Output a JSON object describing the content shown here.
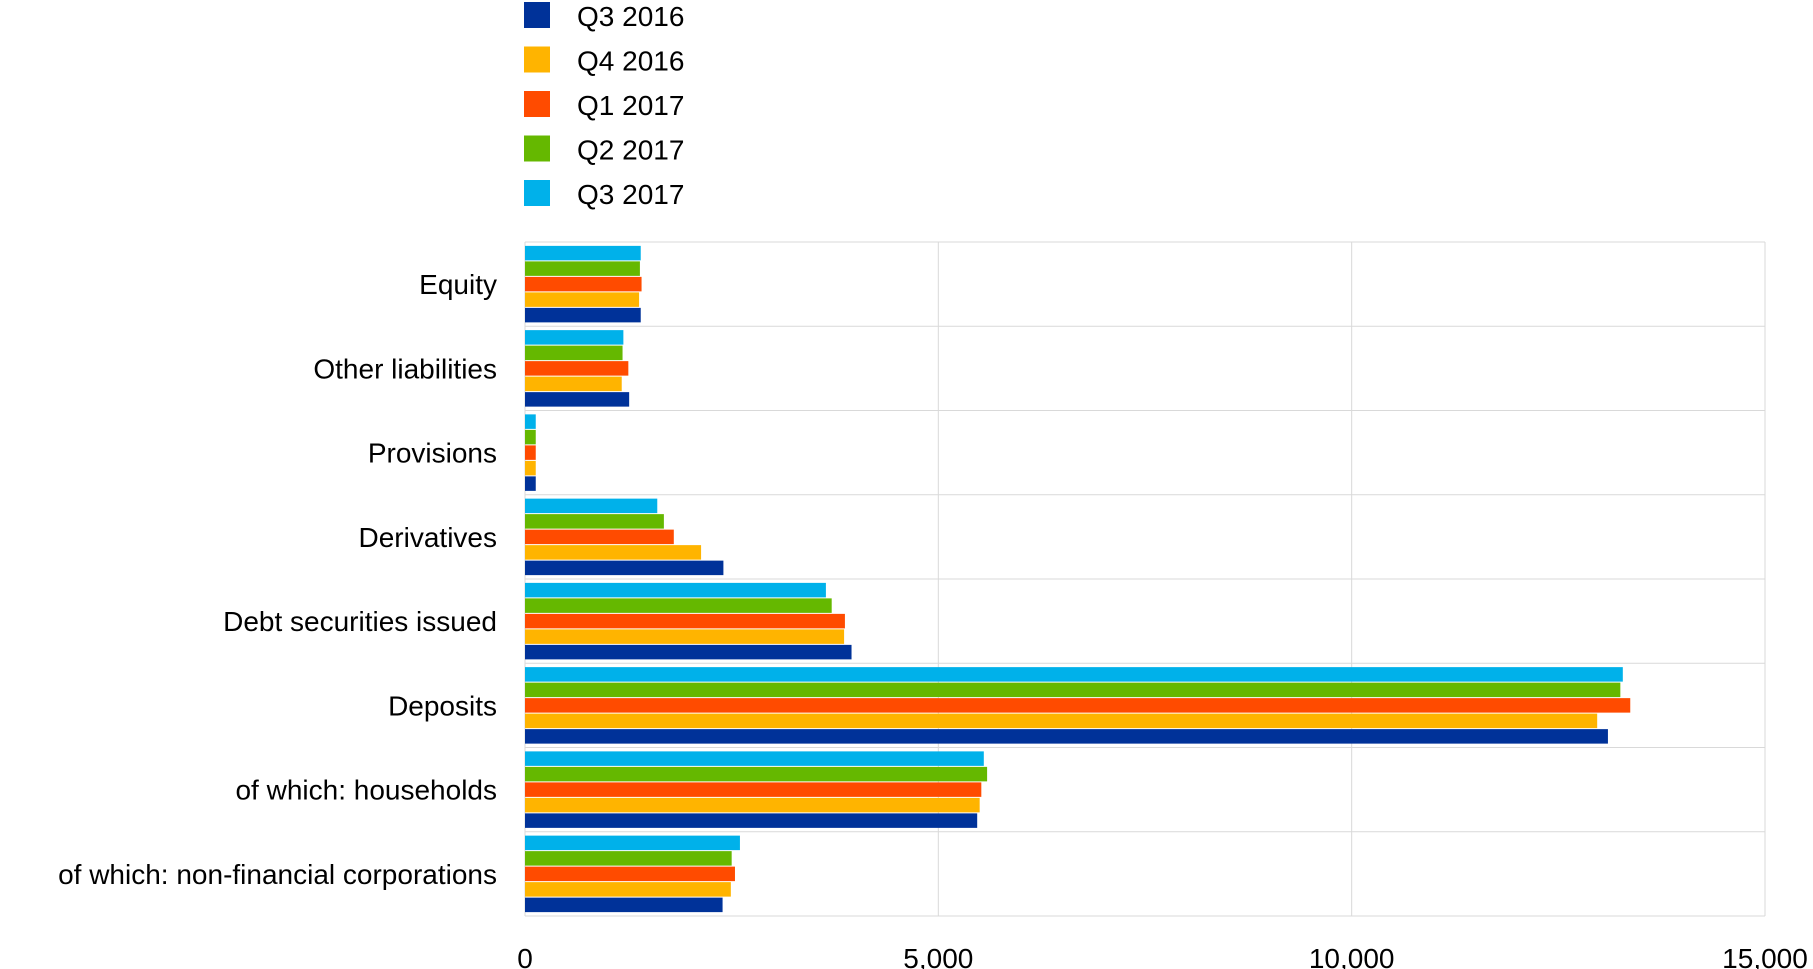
{
  "chart_data": {
    "type": "bar",
    "orientation": "horizontal",
    "categories": [
      "Equity",
      "Other liabilities",
      "Provisions",
      "Derivatives",
      "Debt securities issued",
      "Deposits",
      "of which: households",
      "of which: non-financial corporations"
    ],
    "series": [
      {
        "name": "Q3 2016",
        "color": "#003299",
        "values": [
          1400,
          1260,
          130,
          2400,
          3950,
          13100,
          5470,
          2390
        ]
      },
      {
        "name": "Q4 2016",
        "color": "#FFB400",
        "values": [
          1380,
          1170,
          130,
          2130,
          3860,
          12970,
          5500,
          2490
        ]
      },
      {
        "name": "Q1 2017",
        "color": "#FF4B00",
        "values": [
          1410,
          1250,
          130,
          1800,
          3870,
          13370,
          5520,
          2540
        ]
      },
      {
        "name": "Q2 2017",
        "color": "#65B800",
        "values": [
          1390,
          1180,
          130,
          1680,
          3710,
          13250,
          5590,
          2500
        ]
      },
      {
        "name": "Q3 2017",
        "color": "#00B1EA",
        "values": [
          1400,
          1190,
          130,
          1600,
          3640,
          13280,
          5550,
          2600
        ]
      }
    ],
    "xlim": [
      0,
      15000
    ],
    "xticks": [
      0,
      5000,
      10000,
      15000
    ],
    "xtick_labels": [
      "0",
      "5,000",
      "10,000",
      "15,000"
    ],
    "grid": true,
    "legend_position": "top",
    "title": "",
    "xlabel": "",
    "ylabel": ""
  }
}
